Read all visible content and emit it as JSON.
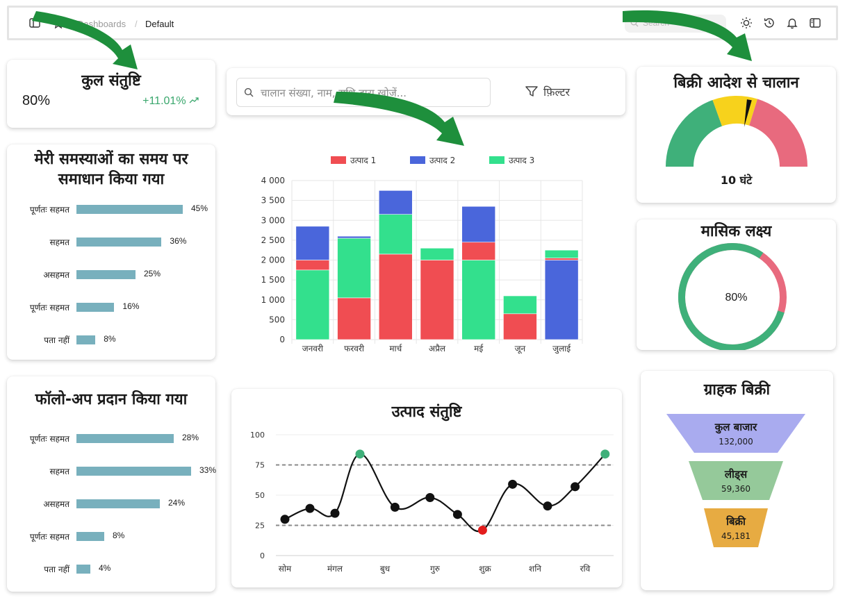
{
  "topbar": {
    "crumb_prev": "Dashboards",
    "crumb_sep": "/",
    "crumb_current": "Default",
    "search_placeholder": "Search"
  },
  "kpi": {
    "title": "कुल संतुष्टि",
    "value": "80%",
    "delta": "+11.01%"
  },
  "resolved": {
    "title_line1": "मेरी समस्याओं का समय पर",
    "title_line2": "समाधान किया गया",
    "rows": [
      {
        "label": "पूर्णतः सहमत",
        "value": 45,
        "pct": "45%"
      },
      {
        "label": "सहमत",
        "value": 36,
        "pct": "36%"
      },
      {
        "label": "असहमत",
        "value": 25,
        "pct": "25%"
      },
      {
        "label": "पूर्णतः सहमत",
        "value": 16,
        "pct": "16%"
      },
      {
        "label": "पता नहीं",
        "value": 8,
        "pct": "8%"
      }
    ]
  },
  "followup": {
    "title": "फॉलो-अप प्रदान किया गया",
    "rows": [
      {
        "label": "पूर्णतः सहमत",
        "value": 28,
        "pct": "28%"
      },
      {
        "label": "सहमत",
        "value": 33,
        "pct": "33%"
      },
      {
        "label": "असहमत",
        "value": 24,
        "pct": "24%"
      },
      {
        "label": "पूर्णतः सहमत",
        "value": 8,
        "pct": "8%"
      },
      {
        "label": "पता नहीं",
        "value": 4,
        "pct": "4%"
      }
    ]
  },
  "searchbar": {
    "placeholder": "चालान संख्या, नाम, राशि द्वारा खोजें...",
    "filter_label": "फ़िल्टर"
  },
  "gauge": {
    "title": "बिक्री आदेश से चालान",
    "value_label": "10 घंटे",
    "value": 10,
    "max": 24,
    "colors": {
      "low": "#3fb07a",
      "mid": "#f7d21c",
      "high": "#e86a7e"
    }
  },
  "monthly_target": {
    "title": "मासिक लक्ष्य",
    "value": 80,
    "label": "80%",
    "colors": {
      "done": "#3fb07a",
      "rest": "#e86a7e"
    }
  },
  "funnel": {
    "title": "ग्राहक बिक्री",
    "stages": [
      {
        "name": "कुल बाजार",
        "value": "132,000",
        "color": "#a9abef"
      },
      {
        "name": "लीड्स",
        "value": "59,360",
        "color": "#95c99a"
      },
      {
        "name": "बिक्री",
        "value": "45,181",
        "color": "#e7ab42"
      }
    ]
  },
  "chart_data": [
    {
      "type": "bar",
      "stacked": true,
      "categories": [
        "जनवरी",
        "फरवरी",
        "मार्च",
        "अप्रैल",
        "मई",
        "जून",
        "जुलाई"
      ],
      "series": [
        {
          "name": "उत्पाद 1",
          "color": "#f04d52",
          "values": [
            250,
            1050,
            2150,
            2000,
            450,
            650,
            50
          ]
        },
        {
          "name": "उत्पाद 2",
          "color": "#4a66db",
          "values": [
            850,
            50,
            600,
            0,
            900,
            0,
            2000
          ]
        },
        {
          "name": "उत्पाद 3",
          "color": "#33e08d",
          "values": [
            1750,
            1500,
            1000,
            300,
            2000,
            450,
            200
          ]
        }
      ],
      "stack_order": [
        [
          "उत्पाद 3",
          "उत्पाद 1",
          "उत्पाद 2"
        ],
        [
          "उत्पाद 1",
          "उत्पाद 3",
          "उत्पाद 2"
        ],
        [
          "उत्पाद 1",
          "उत्पाद 3",
          "उत्पाद 2"
        ],
        [
          "उत्पाद 1",
          "उत्पाद 3",
          "उत्पाद 2"
        ],
        [
          "उत्पाद 3",
          "उत्पाद 1",
          "उत्पाद 2"
        ],
        [
          "उत्पाद 2",
          "उत्पाद 1",
          "उत्पाद 3"
        ],
        [
          "उत्पाद 2",
          "उत्पाद 1",
          "उत्पाद 3"
        ]
      ],
      "y_ticks": [
        "0",
        "500",
        "1 000",
        "1 500",
        "2 000",
        "2 500",
        "3 000",
        "3 500",
        "4 000"
      ],
      "ylim": [
        0,
        4000
      ],
      "legend": "top",
      "grid": true
    },
    {
      "type": "line",
      "title": "उत्पाद संतुष्टि",
      "x_labels": [
        "सोम",
        "मंगल",
        "बुध",
        "गुरु",
        "शुक्र",
        "शनि",
        "रवि"
      ],
      "points": [
        {
          "x": 0,
          "y": 30
        },
        {
          "x": 0.5,
          "y": 39
        },
        {
          "x": 1.0,
          "y": 35
        },
        {
          "x": 1.5,
          "y": 84
        },
        {
          "x": 2.2,
          "y": 40
        },
        {
          "x": 2.9,
          "y": 48
        },
        {
          "x": 3.45,
          "y": 34
        },
        {
          "x": 3.95,
          "y": 21
        },
        {
          "x": 4.55,
          "y": 59
        },
        {
          "x": 5.25,
          "y": 41
        },
        {
          "x": 5.8,
          "y": 57
        },
        {
          "x": 6.4,
          "y": 84
        }
      ],
      "highlight_high": [
        3,
        11
      ],
      "highlight_low": [
        7
      ],
      "reference_lines": [
        75,
        25
      ],
      "y_ticks": [
        "0",
        "25",
        "50",
        "75",
        "100"
      ],
      "ylim": [
        0,
        100
      ],
      "colors": {
        "line": "#111111",
        "point": "#111111",
        "high": "#3fb07a",
        "low": "#e31d1d"
      }
    }
  ]
}
